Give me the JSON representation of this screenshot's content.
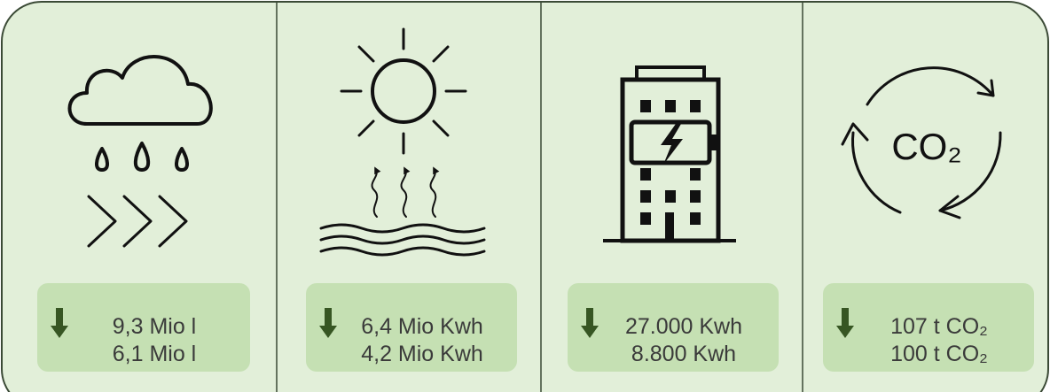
{
  "panels": [
    {
      "line1": "9,3 Mio l",
      "line2": "6,1 Mio l"
    },
    {
      "line1": "6,4 Mio Kwh",
      "line2": "4,2 Mio Kwh"
    },
    {
      "line1": "27.000 Kwh",
      "line2": "8.800 Kwh"
    },
    {
      "line1": "107 t CO₂",
      "line2": "100 t CO₂"
    }
  ],
  "icon_label": "CO₂"
}
